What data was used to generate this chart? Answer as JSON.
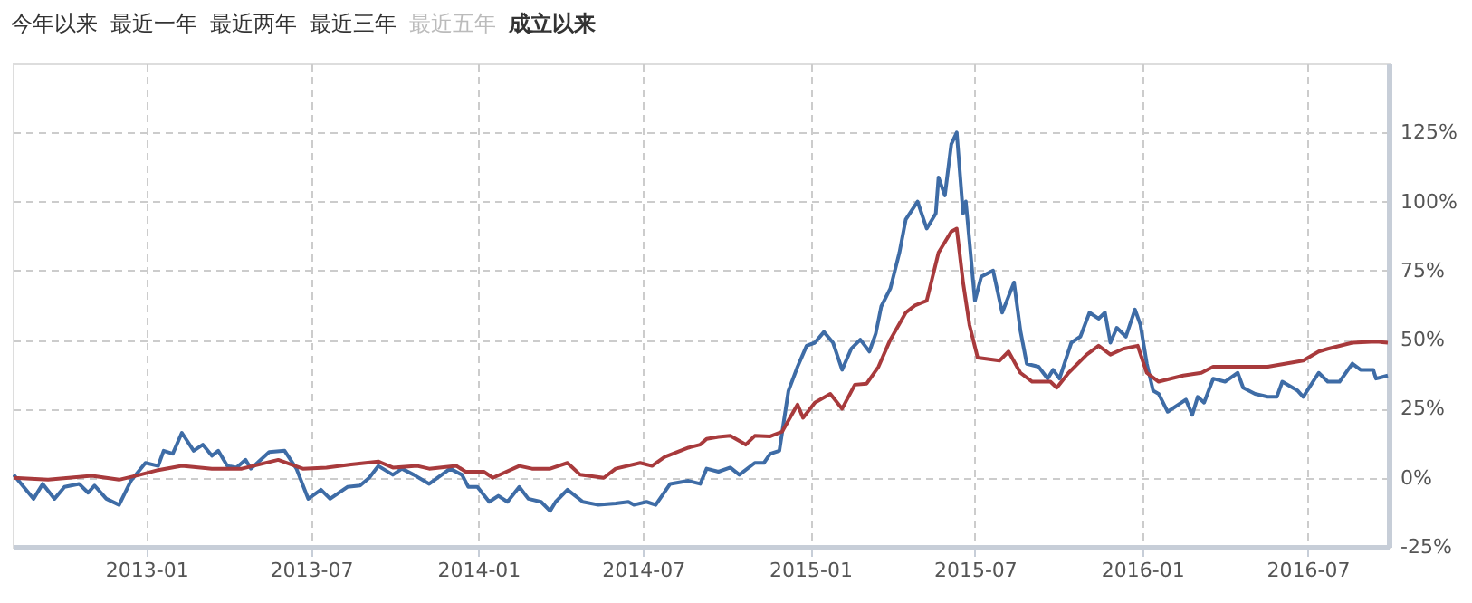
{
  "chart_data": {
    "type": "line",
    "annotations": [
      "今年以来",
      "最近一年",
      "最近两年",
      "最近三年",
      "最近五年",
      "成立以来"
    ],
    "xlim": [
      "2012-08-07",
      "2016-09-28"
    ],
    "xticks": [
      "2013-01",
      "2013-07",
      "2014-01",
      "2014-07",
      "2015-01",
      "2015-07",
      "2016-01",
      "2016-07"
    ],
    "ylim": [
      -25,
      150
    ],
    "yticks": [
      {
        "value": -25,
        "label": "-25%"
      },
      {
        "value": 0,
        "label": "0%"
      },
      {
        "value": 25,
        "label": "25%"
      },
      {
        "value": 50,
        "label": "50%"
      },
      {
        "value": 75,
        "label": "75%"
      },
      {
        "value": 100,
        "label": "100%"
      },
      {
        "value": 125,
        "label": "125%"
      }
    ],
    "grid": true,
    "line_style": "solid",
    "marker": "none",
    "series": [
      {
        "color": "#3e6ca6",
        "x": [
          "2012-08-08",
          "2012-08-30",
          "2012-09-09",
          "2012-09-22",
          "2012-10-03",
          "2012-10-19",
          "2012-10-29",
          "2012-11-05",
          "2012-11-18",
          "2012-12-02",
          "2012-12-15",
          "2012-12-31",
          "2013-01-14",
          "2013-01-20",
          "2013-01-30",
          "2013-02-09",
          "2013-02-22",
          "2013-03-04",
          "2013-03-14",
          "2013-03-21",
          "2013-03-31",
          "2013-04-10",
          "2013-04-20",
          "2013-04-26",
          "2013-05-16",
          "2013-06-02",
          "2013-06-15",
          "2013-06-28",
          "2013-07-12",
          "2013-07-22",
          "2013-08-10",
          "2013-08-24",
          "2013-09-03",
          "2013-09-13",
          "2013-09-29",
          "2013-10-09",
          "2013-10-22",
          "2013-11-08",
          "2013-12-01",
          "2013-12-14",
          "2013-12-21",
          "2013-12-31",
          "2014-01-13",
          "2014-01-23",
          "2014-02-02",
          "2014-02-15",
          "2014-02-25",
          "2014-03-11",
          "2014-03-21",
          "2014-03-27",
          "2014-04-09",
          "2014-04-26",
          "2014-05-13",
          "2014-06-01",
          "2014-06-15",
          "2014-06-21",
          "2014-07-05",
          "2014-07-15",
          "2014-07-31",
          "2014-08-20",
          "2014-09-02",
          "2014-09-09",
          "2014-09-22",
          "2014-10-05",
          "2014-10-15",
          "2014-11-01",
          "2014-11-11",
          "2014-11-18",
          "2014-11-28",
          "2014-12-04",
          "2014-12-08",
          "2014-12-18",
          "2014-12-28",
          "2015-01-06",
          "2015-01-16",
          "2015-01-26",
          "2015-02-05",
          "2015-02-15",
          "2015-02-25",
          "2015-03-07",
          "2015-03-14",
          "2015-03-20",
          "2015-03-30",
          "2015-04-09",
          "2015-04-16",
          "2015-04-29",
          "2015-05-09",
          "2015-05-19",
          "2015-05-22",
          "2015-05-29",
          "2015-06-05",
          "2015-06-11",
          "2015-06-18",
          "2015-06-21",
          "2015-07-01",
          "2015-07-08",
          "2015-07-21",
          "2015-07-31",
          "2015-08-13",
          "2015-08-20",
          "2015-08-27",
          "2015-09-09",
          "2015-09-19",
          "2015-09-25",
          "2015-10-02",
          "2015-10-15",
          "2015-10-25",
          "2015-11-04",
          "2015-11-14",
          "2015-11-21",
          "2015-11-27",
          "2015-12-04",
          "2015-12-14",
          "2015-12-24",
          "2015-12-30",
          "2016-01-06",
          "2016-01-13",
          "2016-01-19",
          "2016-01-29",
          "2016-02-18",
          "2016-02-25",
          "2016-03-02",
          "2016-03-09",
          "2016-03-19",
          "2016-04-01",
          "2016-04-15",
          "2016-04-21",
          "2016-05-04",
          "2016-05-18",
          "2016-05-28",
          "2016-06-03",
          "2016-06-20",
          "2016-06-26",
          "2016-07-13",
          "2016-07-23",
          "2016-08-05",
          "2016-08-19",
          "2016-08-28",
          "2016-09-11",
          "2016-09-14",
          "2016-09-27"
        ],
        "values": [
          1.1,
          -7.6,
          -2.2,
          -7.6,
          -3.3,
          -2.2,
          -5.4,
          -2.8,
          -7.6,
          -9.8,
          -1.1,
          5.4,
          4.3,
          9.8,
          8.7,
          16.3,
          9.8,
          12.0,
          8.0,
          9.8,
          4.3,
          3.7,
          6.5,
          3.3,
          9.3,
          9.8,
          3.3,
          -7.6,
          -4.3,
          -7.6,
          -3.3,
          -2.8,
          0,
          4.3,
          1.1,
          3.3,
          1.1,
          -2.2,
          3.3,
          1.1,
          -3.3,
          -3.3,
          -8.7,
          -6.5,
          -8.7,
          -3.3,
          -7.6,
          -8.7,
          -12.0,
          -8.7,
          -4.3,
          -8.7,
          -9.8,
          -9.3,
          -8.7,
          -9.8,
          -8.7,
          -9.8,
          -2.2,
          -1.1,
          -2.2,
          3.3,
          2.2,
          3.7,
          1.1,
          5.4,
          5.4,
          8.7,
          9.8,
          22.8,
          31.5,
          40.2,
          47.8,
          48.9,
          52.8,
          48.9,
          39.1,
          46.7,
          50.0,
          45.7,
          52.2,
          62.0,
          68.5,
          81.5,
          93.5,
          100.0,
          90.2,
          95.7,
          108.7,
          102.2,
          120.7,
          125.0,
          95.7,
          100.0,
          64.1,
          72.8,
          75.0,
          59.8,
          70.7,
          53.3,
          41.3,
          40.2,
          35.9,
          39.1,
          35.9,
          48.9,
          51.1,
          59.8,
          57.6,
          59.8,
          48.9,
          54.3,
          51.1,
          60.9,
          55.4,
          41.3,
          31.5,
          30.4,
          23.9,
          28.3,
          22.8,
          29.3,
          27.2,
          35.9,
          34.8,
          38.0,
          32.6,
          30.4,
          29.3,
          29.3,
          34.8,
          31.5,
          29.3,
          38.0,
          34.8,
          34.8,
          41.3,
          39.1,
          39.1,
          35.9,
          37.0
        ]
      },
      {
        "color": "#a83a3c",
        "x": [
          "2012-08-08",
          "2012-09-15",
          "2012-11-02",
          "2012-12-02",
          "2012-12-25",
          "2013-01-14",
          "2013-02-09",
          "2013-03-14",
          "2013-04-16",
          "2013-05-26",
          "2013-06-22",
          "2013-07-18",
          "2013-08-14",
          "2013-09-13",
          "2013-09-29",
          "2013-10-26",
          "2013-11-08",
          "2013-12-08",
          "2013-12-18",
          "2014-01-07",
          "2014-01-17",
          "2014-02-15",
          "2014-03-01",
          "2014-03-21",
          "2014-04-09",
          "2014-04-23",
          "2014-05-19",
          "2014-06-01",
          "2014-06-28",
          "2014-07-11",
          "2014-07-25",
          "2014-08-20",
          "2014-09-02",
          "2014-09-09",
          "2014-09-22",
          "2014-10-05",
          "2014-10-22",
          "2014-11-01",
          "2014-11-18",
          "2014-12-01",
          "2014-12-18",
          "2014-12-24",
          "2015-01-06",
          "2015-01-23",
          "2015-02-05",
          "2015-02-19",
          "2015-03-04",
          "2015-03-17",
          "2015-03-30",
          "2015-04-16",
          "2015-04-26",
          "2015-05-09",
          "2015-05-22",
          "2015-06-05",
          "2015-06-11",
          "2015-06-18",
          "2015-06-25",
          "2015-07-04",
          "2015-07-28",
          "2015-08-07",
          "2015-08-20",
          "2015-09-02",
          "2015-09-22",
          "2015-09-29",
          "2015-10-12",
          "2015-11-01",
          "2015-11-14",
          "2015-11-27",
          "2015-12-11",
          "2015-12-27",
          "2016-01-06",
          "2016-01-19",
          "2016-02-15",
          "2016-03-06",
          "2016-03-19",
          "2016-04-15",
          "2016-05-18",
          "2016-06-26",
          "2016-07-13",
          "2016-07-23",
          "2016-08-19",
          "2016-09-14",
          "2016-09-27"
        ],
        "values": [
          0,
          -0.7,
          0.7,
          -0.7,
          1.1,
          2.8,
          4.3,
          3.3,
          3.3,
          6.5,
          3.3,
          3.7,
          4.8,
          5.9,
          3.7,
          4.3,
          3.3,
          4.3,
          2.2,
          2.2,
          0,
          4.3,
          3.3,
          3.3,
          5.4,
          1.1,
          0,
          3.3,
          5.4,
          4.3,
          7.6,
          10.9,
          12.0,
          14.1,
          14.8,
          15.2,
          12.0,
          15.2,
          15.0,
          16.7,
          26.5,
          21.7,
          27.2,
          30.4,
          25.0,
          33.7,
          34.1,
          40.2,
          50.0,
          59.8,
          62.4,
          64.1,
          81.5,
          89.1,
          90.2,
          70.7,
          55.4,
          43.5,
          42.4,
          45.7,
          38.0,
          34.8,
          34.8,
          32.6,
          38.0,
          44.6,
          47.8,
          44.6,
          46.7,
          47.8,
          38.0,
          34.8,
          37.0,
          38.0,
          40.2,
          40.2,
          40.2,
          42.4,
          45.7,
          46.7,
          48.9,
          49.3,
          48.9
        ]
      }
    ]
  }
}
